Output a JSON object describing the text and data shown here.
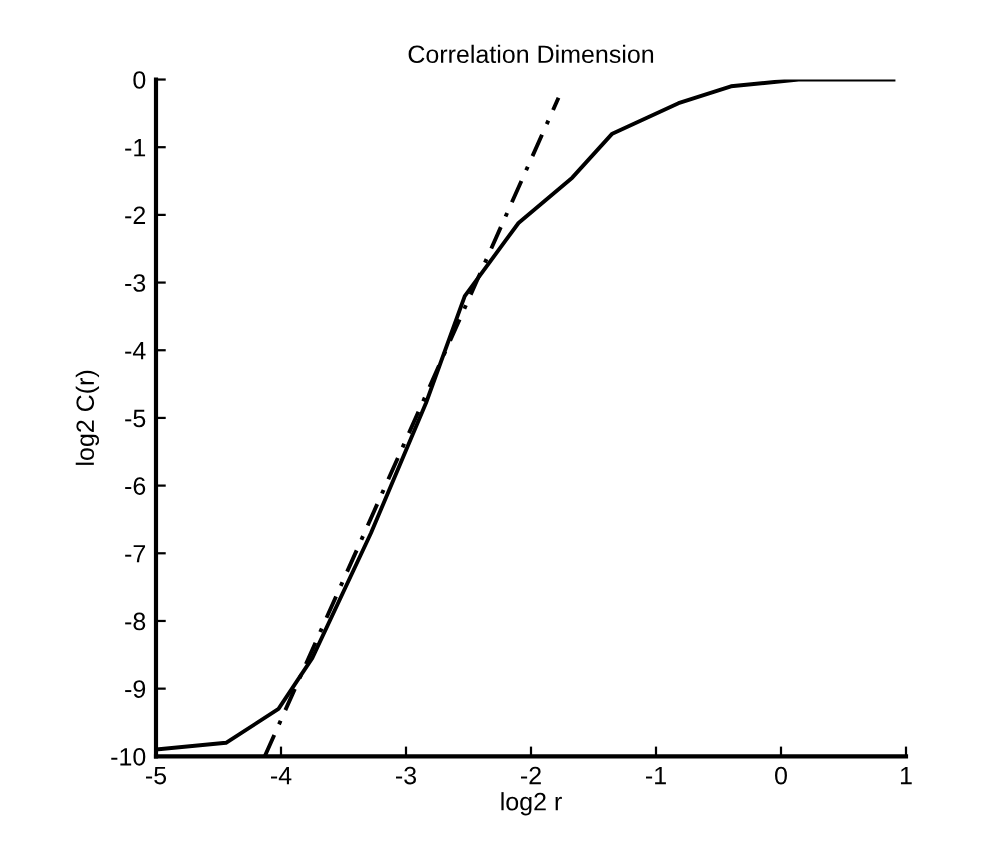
{
  "chart_data": {
    "type": "line",
    "title": "Correlation Dimension",
    "xlabel": "log2 r",
    "ylabel": "log2 C(r)",
    "xlim": [
      -5,
      1
    ],
    "ylim": [
      -10,
      0
    ],
    "xticks": [
      -5,
      -4,
      -3,
      -2,
      -1,
      0,
      1
    ],
    "yticks": [
      -10,
      -9,
      -8,
      -7,
      -6,
      -5,
      -4,
      -3,
      -2,
      -1,
      0
    ],
    "grid": false,
    "series": [
      {
        "color": "#000000",
        "line_style": "solid",
        "x": [
          -5,
          -4.44,
          -4.02,
          -3.75,
          -3.28,
          -2.84,
          -2.53,
          -2.1,
          -1.67,
          -1.35,
          -0.82,
          -0.4,
          0.14,
          0.9
        ],
        "values": [
          -9.9,
          -9.8,
          -9.3,
          -8.55,
          -6.7,
          -4.78,
          -3.2,
          -2.12,
          -1.45,
          -0.8,
          -0.35,
          -0.1,
          0,
          0
        ]
      },
      {
        "color": "#000000",
        "line_style": "dashed",
        "x": [
          -4.13,
          -1.78
        ],
        "values": [
          -10,
          -0.27
        ]
      }
    ]
  }
}
